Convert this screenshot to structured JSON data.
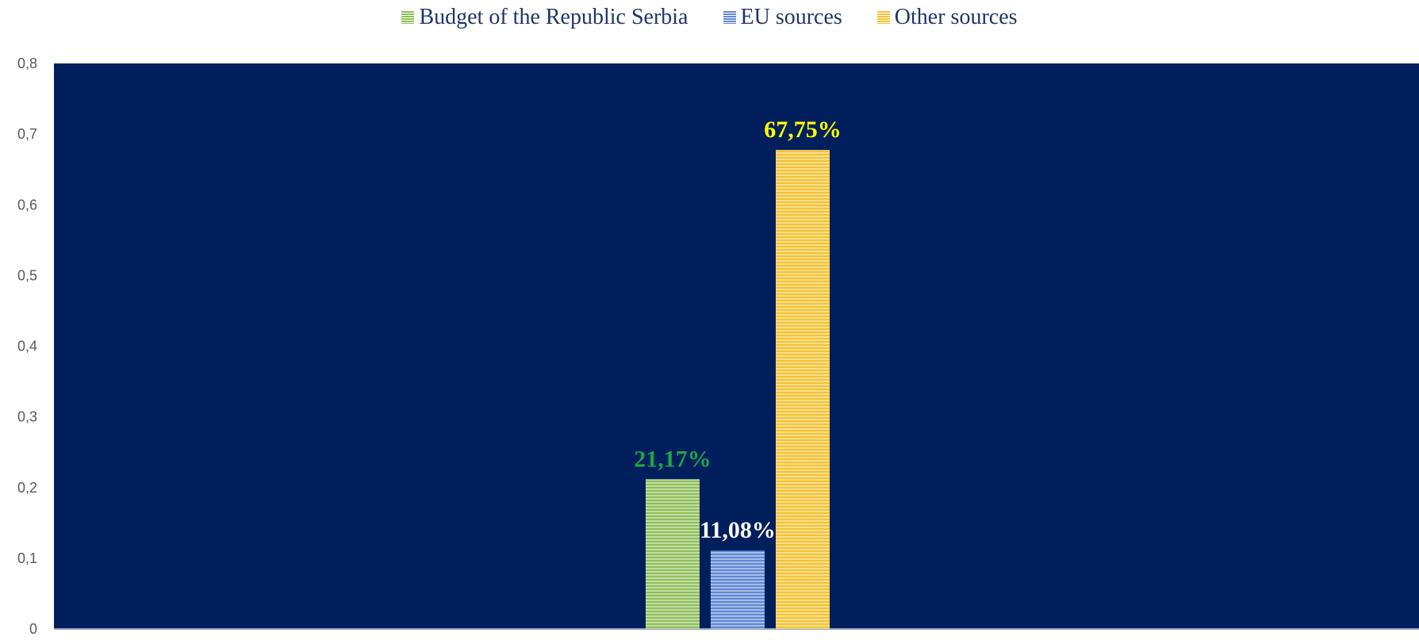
{
  "chart_data": {
    "type": "bar",
    "categories": [
      ""
    ],
    "series": [
      {
        "name": "Budget of the Republic Serbia",
        "values": [
          0.2117
        ],
        "label": "21,17%",
        "color": "#8fbf5a",
        "label_color": "#1fa34a"
      },
      {
        "name": "EU sources",
        "values": [
          0.1108
        ],
        "label": "11,08%",
        "color": "#5f87d3",
        "label_color": "#ffffff"
      },
      {
        "name": "Other sources",
        "values": [
          0.6775
        ],
        "label": "67,75%",
        "color": "#f5c232",
        "label_color": "#ffff00"
      }
    ],
    "ylim": [
      0,
      0.8
    ],
    "yticks": [
      "0",
      "0,1",
      "0,2",
      "0,3",
      "0,4",
      "0,5",
      "0,6",
      "0,7",
      "0,8"
    ],
    "title": "",
    "xlabel": "",
    "ylabel": "",
    "legend_position": "top",
    "grid": false,
    "plot_background": "#001f5c"
  }
}
